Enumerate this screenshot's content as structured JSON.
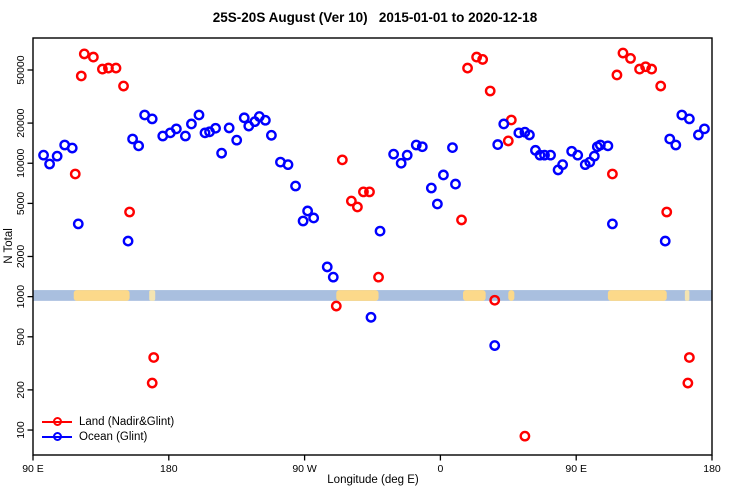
{
  "chart_data": {
    "type": "scatter",
    "title": "25S-20S August (Ver 10)   2015-01-01 to 2020-12-18",
    "xlabel": "Longitude (deg E)",
    "ylabel": "N Total",
    "x_axis": {
      "range_deg": [
        90,
        540
      ],
      "note": "longitude axis wraps eastward from 90E around the globe to 180",
      "ticks": [
        {
          "deg": 90,
          "label": "90 E"
        },
        {
          "deg": 180,
          "label": "180"
        },
        {
          "deg": 270,
          "label": "90 W"
        },
        {
          "deg": 360,
          "label": "0"
        },
        {
          "deg": 450,
          "label": "90 E"
        },
        {
          "deg": 540,
          "label": "180"
        }
      ]
    },
    "y_axis": {
      "log": true,
      "range": [
        65,
        87000
      ],
      "ticks": [
        {
          "value": 100,
          "label": "100"
        },
        {
          "value": 200,
          "label": "200"
        },
        {
          "value": 500,
          "label": "500"
        },
        {
          "value": 1000,
          "label": "1000"
        },
        {
          "value": 2000,
          "label": "2000"
        },
        {
          "value": 5000,
          "label": "5000"
        },
        {
          "value": 10000,
          "label": "10000"
        },
        {
          "value": 20000,
          "label": "20000"
        },
        {
          "value": 50000,
          "label": "50000"
        }
      ]
    },
    "map_band": {
      "value_range": [
        930,
        1120
      ],
      "ocean_color": "#a9bfdf",
      "land_color": "#fcd98a",
      "faint_land_color": "#f3e4b2",
      "land_patches_deg": [
        [
          117,
          154
        ],
        [
          291,
          319
        ],
        [
          375,
          390
        ],
        [
          405,
          409
        ],
        [
          471,
          510
        ]
      ],
      "faint_patches_deg": [
        [
          167,
          171
        ],
        [
          522,
          525
        ]
      ]
    },
    "legend": {
      "position": "bottom-left"
    },
    "series": [
      {
        "name": "Land (Nadir&Glint)",
        "color": "#ff0000",
        "points": [
          [
            124,
            66000
          ],
          [
            130,
            62500
          ],
          [
            136,
            50800
          ],
          [
            140,
            51700
          ],
          [
            145,
            51700
          ],
          [
            122,
            45100
          ],
          [
            150,
            37900
          ],
          [
            118,
            8310
          ],
          [
            154,
            4310
          ],
          [
            170,
            350
          ],
          [
            169,
            225
          ],
          [
            295,
            10600
          ],
          [
            309,
            6100
          ],
          [
            313,
            6100
          ],
          [
            301,
            5210
          ],
          [
            305,
            4700
          ],
          [
            319,
            1400
          ],
          [
            291,
            850
          ],
          [
            374,
            3760
          ],
          [
            378,
            51700
          ],
          [
            384,
            62500
          ],
          [
            388,
            60000
          ],
          [
            393,
            34800
          ],
          [
            405,
            14700
          ],
          [
            407,
            21100
          ],
          [
            396,
            940
          ],
          [
            416,
            90
          ],
          [
            474,
            8310
          ],
          [
            477,
            45900
          ],
          [
            481,
            67000
          ],
          [
            486,
            61100
          ],
          [
            492,
            50800
          ],
          [
            496,
            52900
          ],
          [
            500,
            50800
          ],
          [
            506,
            37900
          ],
          [
            510,
            4310
          ],
          [
            525,
            350
          ],
          [
            524,
            225
          ]
        ]
      },
      {
        "name": "Ocean (Glint)",
        "color": "#0000ff",
        "points": [
          [
            97,
            11500
          ],
          [
            101,
            9870
          ],
          [
            106,
            11300
          ],
          [
            111,
            13700
          ],
          [
            116,
            13000
          ],
          [
            120,
            3510
          ],
          [
            153,
            2610
          ],
          [
            156,
            15200
          ],
          [
            160,
            13500
          ],
          [
            164,
            23000
          ],
          [
            169,
            21500
          ],
          [
            176,
            16000
          ],
          [
            181,
            16900
          ],
          [
            185,
            18100
          ],
          [
            191,
            16000
          ],
          [
            195,
            19700
          ],
          [
            200,
            23000
          ],
          [
            204,
            16900
          ],
          [
            207,
            17200
          ],
          [
            211,
            18300
          ],
          [
            215,
            11900
          ],
          [
            220,
            18400
          ],
          [
            225,
            14900
          ],
          [
            230,
            21900
          ],
          [
            233,
            19000
          ],
          [
            237,
            20500
          ],
          [
            240,
            22400
          ],
          [
            244,
            21000
          ],
          [
            248,
            16200
          ],
          [
            254,
            10200
          ],
          [
            259,
            9760
          ],
          [
            264,
            6750
          ],
          [
            269,
            3690
          ],
          [
            272,
            4390
          ],
          [
            276,
            3890
          ],
          [
            285,
            1670
          ],
          [
            289,
            1400
          ],
          [
            314,
            700
          ],
          [
            320,
            3100
          ],
          [
            329,
            11700
          ],
          [
            334,
            10000
          ],
          [
            338,
            11500
          ],
          [
            344,
            13700
          ],
          [
            348,
            13300
          ],
          [
            354,
            6520
          ],
          [
            358,
            4950
          ],
          [
            362,
            8170
          ],
          [
            368,
            13100
          ],
          [
            370,
            6980
          ],
          [
            396,
            430
          ],
          [
            398,
            13800
          ],
          [
            402,
            19700
          ],
          [
            412,
            16900
          ],
          [
            416,
            17100
          ],
          [
            419,
            16300
          ],
          [
            423,
            12500
          ],
          [
            426,
            11500
          ],
          [
            429,
            11500
          ],
          [
            433,
            11500
          ],
          [
            438,
            8910
          ],
          [
            441,
            9760
          ],
          [
            447,
            12300
          ],
          [
            451,
            11500
          ],
          [
            456,
            9760
          ],
          [
            459,
            10200
          ],
          [
            462,
            11300
          ],
          [
            464,
            13300
          ],
          [
            466,
            13700
          ],
          [
            471,
            13500
          ],
          [
            474,
            3510
          ],
          [
            509,
            2610
          ],
          [
            512,
            15200
          ],
          [
            516,
            13700
          ],
          [
            520,
            23000
          ],
          [
            525,
            21500
          ],
          [
            531,
            16300
          ],
          [
            535,
            18100
          ]
        ]
      }
    ]
  }
}
